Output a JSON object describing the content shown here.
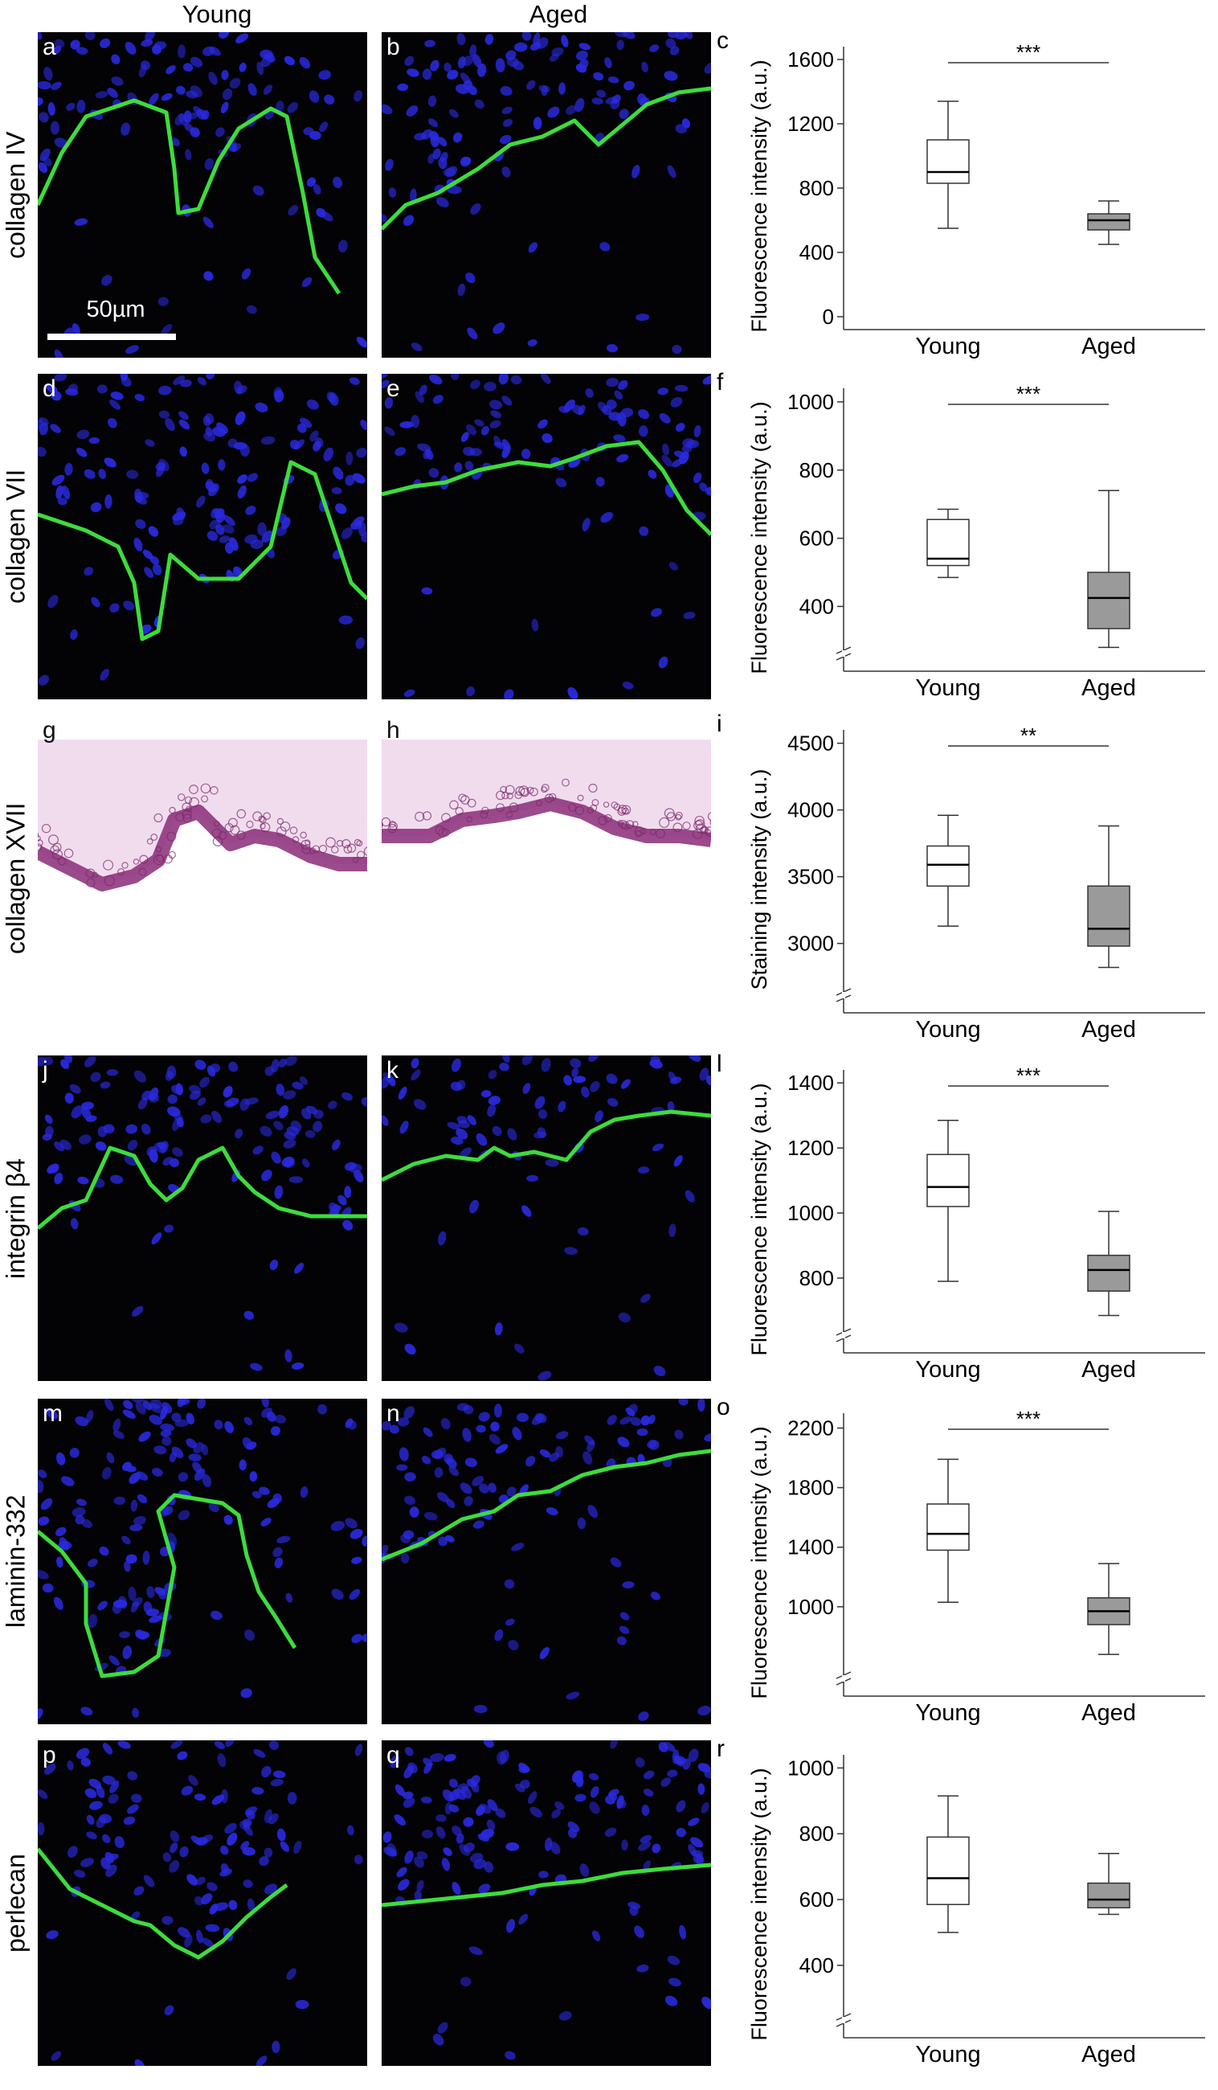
{
  "headers": {
    "young": "Young",
    "aged": "Aged"
  },
  "rows": [
    {
      "label": "collagen IV",
      "young_panel": "a",
      "aged_panel": "b",
      "chart_panel": "c",
      "stain": "fluor"
    },
    {
      "label": "collagen VII",
      "young_panel": "d",
      "aged_panel": "e",
      "chart_panel": "f",
      "stain": "fluor"
    },
    {
      "label": "collagen XVII",
      "young_panel": "g",
      "aged_panel": "h",
      "chart_panel": "i",
      "stain": "ihc"
    },
    {
      "label": "integrin β4",
      "young_panel": "j",
      "aged_panel": "k",
      "chart_panel": "l",
      "stain": "fluor"
    },
    {
      "label": "laminin-332",
      "young_panel": "m",
      "aged_panel": "n",
      "chart_panel": "o",
      "stain": "fluor"
    },
    {
      "label": "perlecan",
      "young_panel": "p",
      "aged_panel": "q",
      "chart_panel": "r",
      "stain": "fluor"
    }
  ],
  "scale_bar": "50µm",
  "colors": {
    "young_box": "#ffffff",
    "aged_box": "#9a9a9a",
    "nuclei": "#2a2ae0",
    "bm_green": "#3ddc3d",
    "ihc_purple": "#8a2c78"
  },
  "chart_data": [
    {
      "type": "box",
      "panel": "c",
      "ylabel": "Fluorescence intensity (a.u.)",
      "categories": [
        "Young",
        "Aged"
      ],
      "ticks": [
        0,
        400,
        800,
        1200,
        1600
      ],
      "ylim": [
        -80,
        1680
      ],
      "axis_break": false,
      "series": [
        {
          "name": "Young",
          "min": 550,
          "q1": 830,
          "median": 900,
          "q3": 1100,
          "max": 1340
        },
        {
          "name": "Aged",
          "min": 450,
          "q1": 540,
          "median": 600,
          "q3": 640,
          "max": 720
        }
      ],
      "significance": "***"
    },
    {
      "type": "box",
      "panel": "f",
      "ylabel": "Fluorescence intensity (a.u.)",
      "categories": [
        "Young",
        "Aged"
      ],
      "ticks": [
        400,
        600,
        800,
        1000
      ],
      "ylim": [
        210,
        1040
      ],
      "axis_break": true,
      "series": [
        {
          "name": "Young",
          "min": 485,
          "q1": 520,
          "median": 540,
          "q3": 655,
          "max": 685
        },
        {
          "name": "Aged",
          "min": 280,
          "q1": 335,
          "median": 425,
          "q3": 500,
          "max": 740
        }
      ],
      "significance": "***"
    },
    {
      "type": "box",
      "panel": "i",
      "ylabel": "Staining intensity (a.u.)",
      "categories": [
        "Young",
        "Aged"
      ],
      "ticks": [
        3000,
        3500,
        4000,
        4500
      ],
      "ylim": [
        2480,
        4600
      ],
      "axis_break": true,
      "series": [
        {
          "name": "Young",
          "min": 3130,
          "q1": 3430,
          "median": 3590,
          "q3": 3730,
          "max": 3960
        },
        {
          "name": "Aged",
          "min": 2820,
          "q1": 2980,
          "median": 3110,
          "q3": 3430,
          "max": 3880
        }
      ],
      "significance": "**"
    },
    {
      "type": "box",
      "panel": "l",
      "ylabel": "Fluorescence intensity (a.u.)",
      "categories": [
        "Young",
        "Aged"
      ],
      "ticks": [
        800,
        1000,
        1200,
        1400
      ],
      "ylim": [
        570,
        1440
      ],
      "axis_break": true,
      "series": [
        {
          "name": "Young",
          "min": 790,
          "q1": 1020,
          "median": 1080,
          "q3": 1180,
          "max": 1285
        },
        {
          "name": "Aged",
          "min": 685,
          "q1": 760,
          "median": 825,
          "q3": 870,
          "max": 1005
        }
      ],
      "significance": "***"
    },
    {
      "type": "box",
      "panel": "o",
      "ylabel": "Fluorescence intensity (a.u.)",
      "categories": [
        "Young",
        "Aged"
      ],
      "ticks": [
        1000,
        1400,
        1800,
        2200
      ],
      "ylim": [
        400,
        2300
      ],
      "axis_break": true,
      "series": [
        {
          "name": "Young",
          "min": 1030,
          "q1": 1380,
          "median": 1490,
          "q3": 1690,
          "max": 1990
        },
        {
          "name": "Aged",
          "min": 680,
          "q1": 880,
          "median": 970,
          "q3": 1060,
          "max": 1290
        }
      ],
      "significance": "***"
    },
    {
      "type": "box",
      "panel": "r",
      "ylabel": "Fluorescence intensity (a.u.)",
      "categories": [
        "Young",
        "Aged"
      ],
      "ticks": [
        400,
        600,
        800,
        1000
      ],
      "ylim": [
        180,
        1040
      ],
      "axis_break": true,
      "series": [
        {
          "name": "Young",
          "min": 500,
          "q1": 585,
          "median": 665,
          "q3": 790,
          "max": 915
        },
        {
          "name": "Aged",
          "min": 555,
          "q1": 575,
          "median": 600,
          "q3": 650,
          "max": 740
        }
      ],
      "significance": ""
    }
  ]
}
